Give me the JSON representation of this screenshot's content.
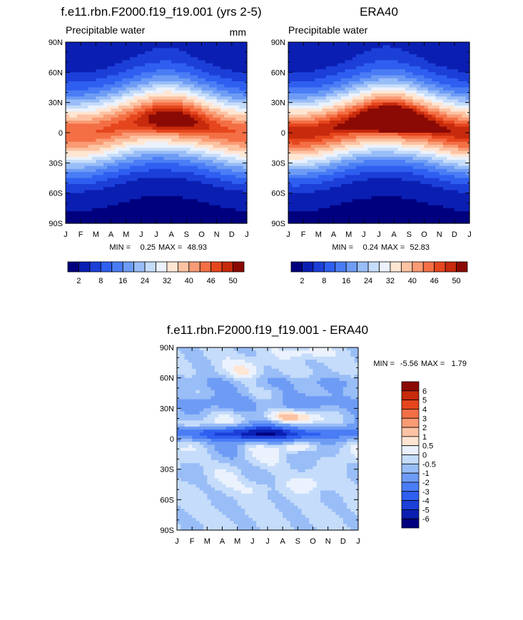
{
  "chart_data": [
    {
      "type": "heatmap",
      "title": "f.e11.rbn.F2000.f19_f19.001 (yrs 2-5)",
      "subtitle": "Precipitable water",
      "units": "mm",
      "x_ticks": [
        "J",
        "F",
        "M",
        "A",
        "M",
        "J",
        "J",
        "A",
        "S",
        "O",
        "N",
        "D",
        "J"
      ],
      "y_ticks": [
        "90N",
        "60N",
        "30N",
        "0",
        "30S",
        "60S",
        "90S"
      ],
      "min_label": "MIN =",
      "min_value": "0.25",
      "max_label": "MAX =",
      "max_value": "48.93",
      "peak_month": 7.2,
      "peak_lat": 6,
      "colorbar_labels": [
        "2",
        "8",
        "16",
        "24",
        "32",
        "40",
        "46",
        "50"
      ],
      "levels": [
        2,
        5,
        8,
        12,
        16,
        20,
        24,
        28,
        32,
        36,
        40,
        43,
        46,
        48,
        50
      ]
    },
    {
      "type": "heatmap",
      "title": "ERA40",
      "subtitle": "Precipitable water",
      "x_ticks": [
        "J",
        "F",
        "M",
        "A",
        "M",
        "J",
        "J",
        "A",
        "S",
        "O",
        "N",
        "D",
        "J"
      ],
      "y_ticks": [
        "90N",
        "60N",
        "30N",
        "0",
        "30S",
        "60S",
        "90S"
      ],
      "min_label": "MIN =",
      "min_value": "0.24",
      "max_label": "MAX =",
      "max_value": "52.83",
      "peak_month": 7.0,
      "peak_lat": 6,
      "colorbar_labels": [
        "2",
        "8",
        "16",
        "24",
        "32",
        "40",
        "46",
        "50"
      ],
      "levels": [
        2,
        5,
        8,
        12,
        16,
        20,
        24,
        28,
        32,
        36,
        40,
        43,
        46,
        48,
        50
      ]
    },
    {
      "type": "heatmap",
      "title": "f.e11.rbn.F2000.f19_f19.001 - ERA40",
      "x_ticks": [
        "J",
        "F",
        "M",
        "A",
        "M",
        "J",
        "J",
        "A",
        "S",
        "O",
        "N",
        "D",
        "J"
      ],
      "y_ticks": [
        "90N",
        "60N",
        "30N",
        "0",
        "30S",
        "60S",
        "90S"
      ],
      "min_label": "MIN =",
      "min_value": "-5.56",
      "max_label": "MAX =",
      "max_value": "1.79",
      "colorbar_labels": [
        "6",
        "5",
        "4",
        "3",
        "2",
        "1",
        "0.5",
        "0",
        "-0.5",
        "-1",
        "-2",
        "-3",
        "-4",
        "-5",
        "-6"
      ],
      "levels": [
        -6,
        -5,
        -4,
        -3,
        -2,
        -1,
        -0.5,
        0,
        0.5,
        1,
        2,
        3,
        4,
        5,
        6
      ]
    }
  ],
  "colors": {
    "abs_palette": [
      "#00007f",
      "#0a1fb2",
      "#1c3fd8",
      "#2f5ff0",
      "#4a7df5",
      "#6e9cf5",
      "#99bdf7",
      "#c5dcfa",
      "#ebf2fd",
      "#ffe6d3",
      "#fcc3a3",
      "#f99b74",
      "#f46f45",
      "#e6461d",
      "#c72a0c",
      "#8b0a05"
    ],
    "diff_palette": [
      "#00007f",
      "#0a1fb2",
      "#1c3fd8",
      "#2f5ff0",
      "#4a7df5",
      "#6e9cf5",
      "#99bdf7",
      "#c5dcfa",
      "#ebf2fd",
      "#ffe6d3",
      "#fcc3a3",
      "#f99b74",
      "#f46f45",
      "#e6461d",
      "#c72a0c",
      "#8b0a05"
    ]
  }
}
